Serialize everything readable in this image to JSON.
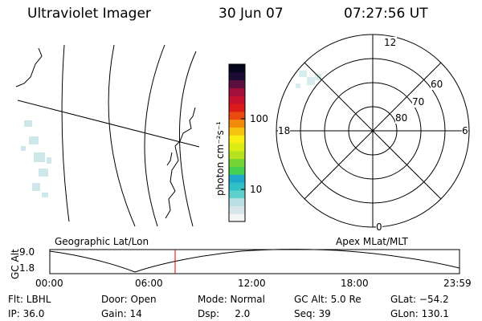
{
  "header": {
    "instrument": "Ultraviolet Imager",
    "date": "30 Jun 07",
    "time": "07:27:56 UT"
  },
  "colorbar": {
    "unit_label": "photon cm⁻²s⁻¹",
    "ticks": [
      "100",
      "10"
    ],
    "scale": "log",
    "colors": [
      "#f2f4f6",
      "#d6e6ea",
      "#b8dfe3",
      "#5fd0cc",
      "#2fc0c8",
      "#20a8c8",
      "#45d050",
      "#76d436",
      "#b6e21f",
      "#dcec15",
      "#f7ee12",
      "#f6c110",
      "#f28a0c",
      "#e94a10",
      "#dd1a1a",
      "#c4122f",
      "#a0103a",
      "#5a0f3e",
      "#1c0b34",
      "#07061e"
    ]
  },
  "polar_plot": {
    "mlt_labels": [
      "12",
      "18",
      "6",
      "0"
    ],
    "lat_labels": [
      "60",
      "70",
      "80"
    ]
  },
  "timeline": {
    "left_label": "Geographic Lat/Lon",
    "right_label": "Apex MLat/MLT",
    "axis_title": "GC Alt",
    "y_ticks": [
      "9.0",
      "1.8"
    ],
    "x_ticks": [
      "00:00",
      "06:00",
      "12:00",
      "18:00",
      "23:59"
    ],
    "marker_color": "#dd0000"
  },
  "info": {
    "filter": "Flt: LBHL",
    "ip": "IP: 36.0",
    "door": "Door: Open",
    "gain": "Gain: 14",
    "mode": "Mode: Normal",
    "dsp": "Dsp:     2.0",
    "gc_alt": "GC Alt: 5.0 Re",
    "seq": "Seq: 39",
    "glat": "GLat: −54.2",
    "glon": "GLon: 130.1"
  }
}
